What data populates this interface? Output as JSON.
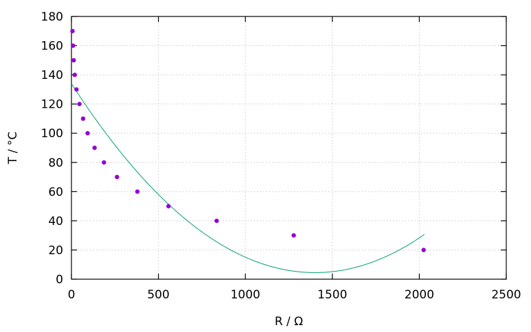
{
  "chart_data": {
    "type": "scatter",
    "xlabel": "R / Ω",
    "ylabel": "T / °C",
    "xlim": [
      0,
      2500
    ],
    "ylim": [
      0,
      180
    ],
    "x_ticks": [
      0,
      500,
      1000,
      1500,
      2000,
      2500
    ],
    "y_ticks": [
      0,
      20,
      40,
      60,
      80,
      100,
      120,
      140,
      160,
      180
    ],
    "x_tick_labels": [
      "0",
      "500",
      "1000",
      "1500",
      "2000",
      "2500"
    ],
    "y_tick_labels": [
      "0",
      "20",
      "40",
      "60",
      "80",
      "100",
      "120",
      "140",
      "160",
      "180"
    ],
    "grid": true,
    "series": [
      {
        "type": "scatter",
        "color": "#9400d3",
        "points": [
          {
            "x": 6,
            "y": 170
          },
          {
            "x": 9,
            "y": 160
          },
          {
            "x": 13,
            "y": 150
          },
          {
            "x": 19,
            "y": 140
          },
          {
            "x": 29,
            "y": 130
          },
          {
            "x": 46,
            "y": 120
          },
          {
            "x": 67,
            "y": 110
          },
          {
            "x": 93,
            "y": 100
          },
          {
            "x": 133,
            "y": 90
          },
          {
            "x": 187,
            "y": 80
          },
          {
            "x": 262,
            "y": 70
          },
          {
            "x": 379,
            "y": 60
          },
          {
            "x": 558,
            "y": 50
          },
          {
            "x": 835,
            "y": 40
          },
          {
            "x": 1278,
            "y": 30
          },
          {
            "x": 2025,
            "y": 20
          }
        ]
      },
      {
        "type": "line",
        "color": "#009e73",
        "curve": {
          "form": "quadratic",
          "x_vertex": 1400,
          "y_vertex": 4.5,
          "x_start": 0,
          "x_end": 2030,
          "y_start": 134
        }
      }
    ]
  }
}
